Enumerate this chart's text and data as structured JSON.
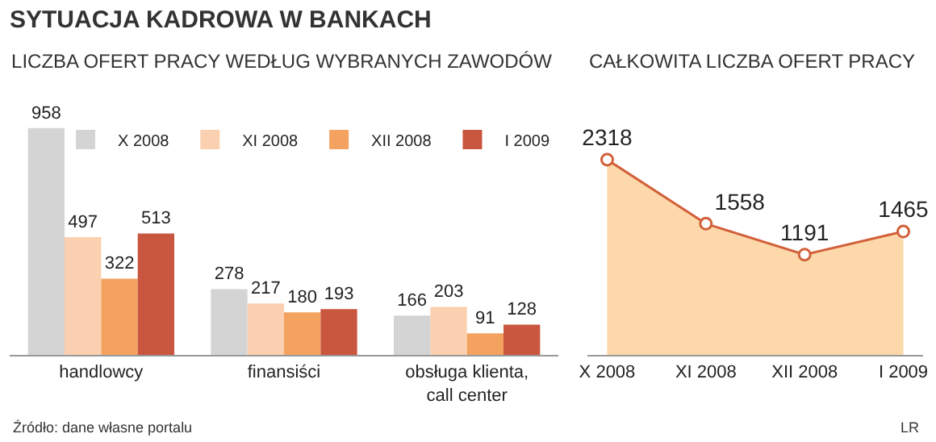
{
  "chart_data": [
    {
      "type": "bar",
      "title": "SYTUACJA KADROWA W BANKACH",
      "subtitle": "LICZBA OFERT PRACY WEDŁUG WYBRANYCH ZAWODÓW",
      "categories": [
        "handlowcy",
        "finansiści",
        "obsługa klienta, call center"
      ],
      "series": [
        {
          "name": "X 2008",
          "color": "#d4d4d4",
          "values": [
            958,
            278,
            166
          ]
        },
        {
          "name": "XI 2008",
          "color": "#fbd0b0",
          "values": [
            497,
            217,
            203
          ]
        },
        {
          "name": "XII 2008",
          "color": "#f3a260",
          "values": [
            322,
            180,
            91
          ]
        },
        {
          "name": "I 2009",
          "color": "#c9563e",
          "values": [
            513,
            193,
            128
          ]
        }
      ],
      "data_labels": true,
      "legend": "top right",
      "tick_labels": "x",
      "annotations": [
        "Źródło: dane własne portalu"
      ]
    },
    {
      "type": "area",
      "title": "CAŁKOWITA LICZBA OFERT PRACY",
      "categories": [
        "X 2008",
        "XI 2008",
        "XII 2008",
        "I 2009"
      ],
      "series": [
        {
          "color": "#d2603a",
          "values": [
            2318,
            1558,
            1191,
            1465
          ]
        }
      ],
      "tick_labels": "x",
      "marker": "circle",
      "data_labels": true,
      "annotations": [
        "LR"
      ]
    }
  ]
}
